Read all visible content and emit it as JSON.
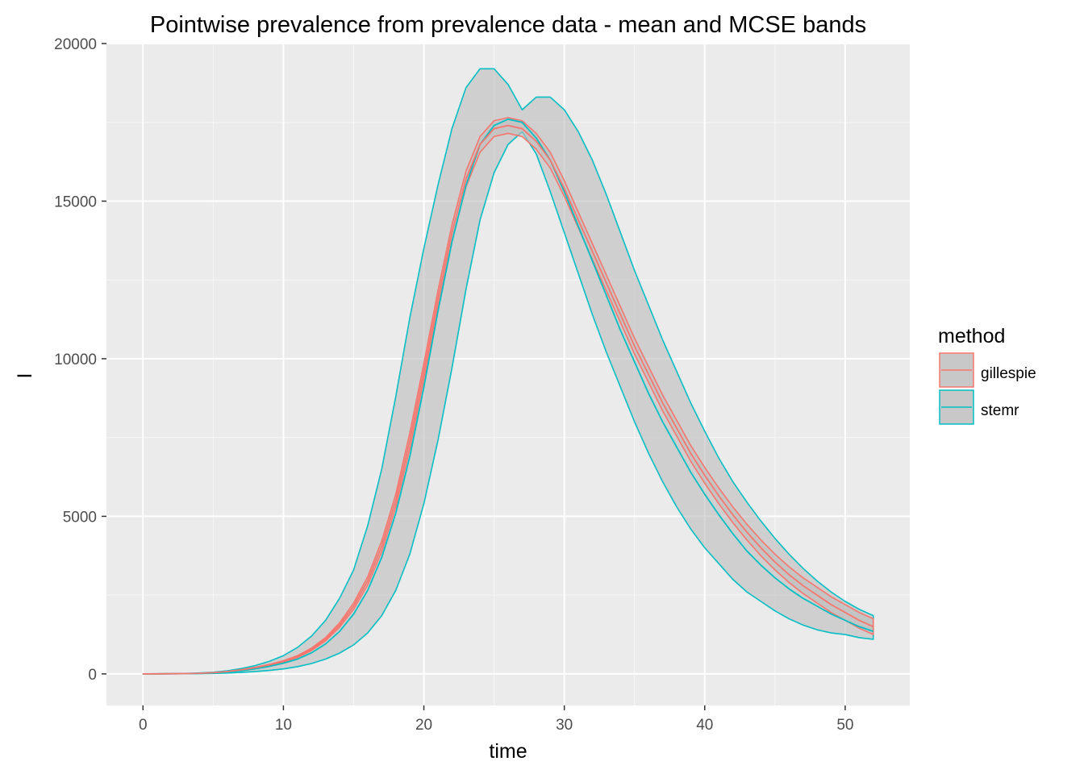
{
  "chart_data": {
    "type": "area",
    "title": "Pointwise prevalence from prevalence data - mean and MCSE bands",
    "xlabel": "time",
    "ylabel": "I",
    "xlim": [
      -2.6,
      54.6
    ],
    "ylim": [
      -1000,
      20000
    ],
    "x_ticks": [
      0,
      10,
      20,
      30,
      40,
      50
    ],
    "y_ticks": [
      0,
      5000,
      10000,
      15000,
      20000
    ],
    "x_tick_labels": [
      "0",
      "10",
      "20",
      "30",
      "40",
      "50"
    ],
    "y_tick_labels": [
      "0",
      "5000",
      "10000",
      "15000",
      "20000"
    ],
    "grid": true,
    "panel_background": "#ebebeb",
    "band_fill": "#bdbdbd",
    "legend": {
      "title": "method",
      "placement": "right",
      "entries": [
        "gillespie",
        "stemr"
      ]
    },
    "x": [
      0,
      1,
      2,
      3,
      4,
      5,
      6,
      7,
      8,
      9,
      10,
      11,
      12,
      13,
      14,
      15,
      16,
      17,
      18,
      19,
      20,
      21,
      22,
      23,
      24,
      25,
      26,
      27,
      28,
      29,
      30,
      31,
      32,
      33,
      34,
      35,
      36,
      37,
      38,
      39,
      40,
      41,
      42,
      43,
      44,
      45,
      46,
      47,
      48,
      49,
      50,
      51,
      52
    ],
    "series": [
      {
        "name": "gillespie",
        "color": "#F8766D",
        "mean": [
          0,
          2,
          5,
          10,
          20,
          40,
          75,
          130,
          200,
          290,
          400,
          550,
          780,
          1100,
          1550,
          2150,
          2950,
          4050,
          5500,
          7400,
          9600,
          11900,
          14000,
          15700,
          16800,
          17300,
          17400,
          17300,
          16900,
          16300,
          15400,
          14400,
          13400,
          12400,
          11400,
          10400,
          9500,
          8600,
          7800,
          7000,
          6300,
          5650,
          5050,
          4500,
          4000,
          3550,
          3150,
          2800,
          2500,
          2200,
          1950,
          1700,
          1500
        ],
        "lower": [
          0,
          2,
          5,
          10,
          20,
          38,
          72,
          125,
          190,
          275,
          380,
          520,
          740,
          1050,
          1480,
          2050,
          2820,
          3880,
          5300,
          7150,
          9350,
          11650,
          13750,
          15450,
          16550,
          17050,
          17150,
          17050,
          16650,
          16050,
          15150,
          14150,
          13150,
          12150,
          11150,
          10150,
          9250,
          8350,
          7550,
          6750,
          6050,
          5400,
          4800,
          4250,
          3750,
          3300,
          2900,
          2550,
          2250,
          1950,
          1700,
          1450,
          1250
        ],
        "upper": [
          0,
          2,
          5,
          10,
          20,
          42,
          78,
          135,
          210,
          305,
          420,
          580,
          820,
          1150,
          1620,
          2250,
          3080,
          4220,
          5700,
          7650,
          9850,
          12150,
          14250,
          15950,
          17050,
          17550,
          17650,
          17550,
          17150,
          16550,
          15650,
          14650,
          13650,
          12650,
          11650,
          10650,
          9750,
          8850,
          8050,
          7250,
          6550,
          5900,
          5300,
          4750,
          4250,
          3800,
          3400,
          3050,
          2750,
          2450,
          2200,
          1950,
          1750
        ]
      },
      {
        "name": "stemr",
        "color": "#00BFC4",
        "mean": [
          0,
          2,
          5,
          9,
          17,
          33,
          60,
          100,
          160,
          240,
          340,
          470,
          670,
          950,
          1350,
          1900,
          2650,
          3700,
          5100,
          6900,
          9100,
          11500,
          13700,
          15500,
          16800,
          17400,
          17600,
          17500,
          17000,
          16300,
          15300,
          14200,
          13100,
          12000,
          10900,
          9900,
          8900,
          8000,
          7200,
          6400,
          5700,
          5050,
          4450,
          3900,
          3450,
          3050,
          2700,
          2400,
          2150,
          1900,
          1700,
          1500,
          1350
        ],
        "lower": [
          0,
          1,
          2,
          4,
          8,
          15,
          28,
          48,
          75,
          110,
          160,
          230,
          330,
          470,
          660,
          920,
          1300,
          1850,
          2650,
          3800,
          5400,
          7400,
          9700,
          12200,
          14400,
          15900,
          16800,
          17200,
          16500,
          15300,
          14000,
          12700,
          11400,
          10200,
          9100,
          8000,
          7000,
          6100,
          5300,
          4600,
          4000,
          3500,
          3000,
          2600,
          2300,
          2000,
          1750,
          1550,
          1400,
          1300,
          1250,
          1150,
          1100
        ],
        "upper": [
          0,
          3,
          8,
          16,
          30,
          55,
          100,
          170,
          265,
          400,
          580,
          840,
          1200,
          1700,
          2400,
          3300,
          4700,
          6500,
          8800,
          11300,
          13500,
          15500,
          17300,
          18600,
          19200,
          19200,
          18700,
          17900,
          18300,
          18300,
          17900,
          17200,
          16300,
          15200,
          14000,
          12800,
          11700,
          10600,
          9600,
          8600,
          7700,
          6850,
          6100,
          5450,
          4850,
          4300,
          3800,
          3350,
          2950,
          2600,
          2300,
          2050,
          1850
        ]
      }
    ]
  }
}
